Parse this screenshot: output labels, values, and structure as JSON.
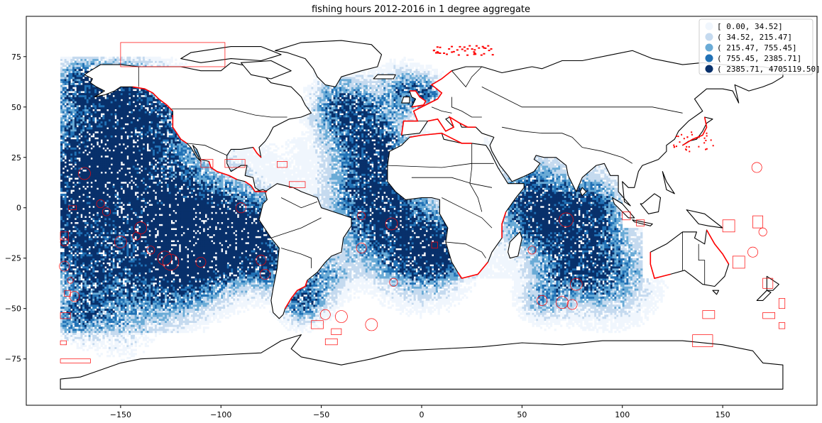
{
  "title": "fishing hours 2012-2016 in 1 degree aggregate",
  "map": {
    "extent": {
      "lon": [
        -197,
        197
      ],
      "lat": [
        -98,
        95
      ]
    },
    "x_ticks": [
      -150,
      -100,
      -50,
      0,
      50,
      100,
      150
    ],
    "y_ticks": [
      75,
      50,
      25,
      0,
      -25,
      -50,
      -75
    ],
    "grid": false
  },
  "legend": {
    "placement": "top-right",
    "entries": [
      {
        "label": "[      0.00,      34.52]",
        "color": "#f0f6fd"
      },
      {
        "label": "(    34.52,     215.47]",
        "color": "#c5daef"
      },
      {
        "label": "(   215.47,     755.45]",
        "color": "#6aabd6"
      },
      {
        "label": "(   755.45,    2385.71]",
        "color": "#2171b5"
      },
      {
        "label": "(  2385.71, 4705119.50]",
        "color": "#08306b"
      }
    ]
  },
  "layers": {
    "land_outline_color": "#000000",
    "protected_areas_color": "#ff0000"
  }
}
